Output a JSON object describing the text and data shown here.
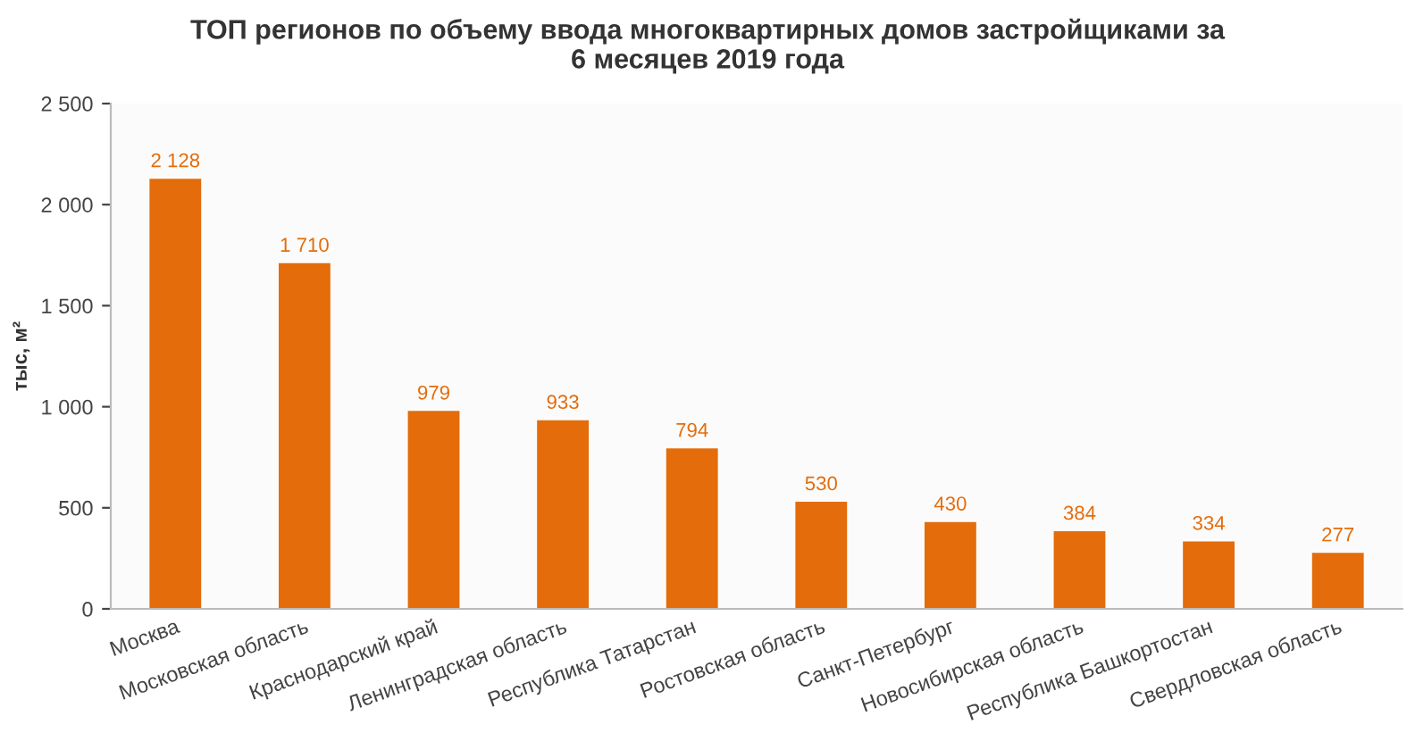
{
  "chart_data": {
    "type": "bar",
    "title": "ТОП регионов по объему ввода многоквартирных домов застройщиками за\n6 месяцев 2019 года",
    "ylabel": "тыс, м²",
    "categories": [
      "Москва",
      "Московская область",
      "Краснодарский край",
      "Ленинградская область",
      "Республика Татарстан",
      "Ростовская область",
      "Санкт-Петербург",
      "Новосибирская область",
      "Республика Башкортостан",
      "Свердловская область"
    ],
    "values": [
      2128,
      1710,
      979,
      933,
      794,
      530,
      430,
      384,
      334,
      277
    ],
    "value_labels": [
      "2 128",
      "1 710",
      "979",
      "933",
      "794",
      "530",
      "430",
      "384",
      "334",
      "277"
    ],
    "color": "#e46c0a",
    "ylim": [
      0,
      2500
    ],
    "yticks": [
      0,
      500,
      {
        "value": 1000,
        "label": "1 000"
      },
      {
        "value": 1500,
        "label": "1 500"
      },
      {
        "value": 2000,
        "label": "2 000"
      },
      {
        "value": 2500,
        "label": "2 500"
      }
    ],
    "grid": false,
    "legend": false
  }
}
